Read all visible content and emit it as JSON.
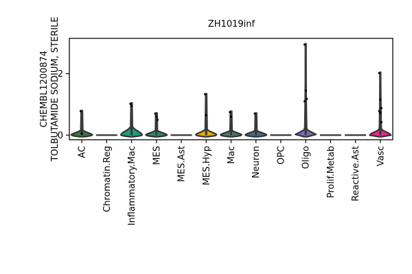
{
  "chart_data": {
    "type": "violin",
    "title": "ZH1019inf",
    "ylabel_lines": [
      "CHEMBL1200874",
      "TOLBUTAMIDE SODIUM, STERILE"
    ],
    "xlabel": "",
    "ylim": [
      -0.15,
      3.15
    ],
    "yticks": [
      0,
      2
    ],
    "grid": false,
    "legend": "none",
    "categories": [
      {
        "label": "AC",
        "max": 0.8,
        "color": "#3a7a4a",
        "spread": 0.15,
        "points": [
          0.78,
          0.05
        ]
      },
      {
        "label": "Chromatin.Reg",
        "max": 0.0,
        "color": "#2a6a5a",
        "spread": 0.0,
        "points": []
      },
      {
        "label": "Inflammatory.Mac",
        "max": 1.05,
        "color": "#1b9e77",
        "spread": 0.55,
        "points": [
          1.02,
          0.95
        ]
      },
      {
        "label": "MES",
        "max": 0.72,
        "color": "#2e8a60",
        "spread": 0.12,
        "points": [
          0.7,
          0.6,
          0.5
        ]
      },
      {
        "label": "MES.Ast",
        "max": 0.0,
        "color": "#b59a20",
        "spread": 0.0,
        "points": []
      },
      {
        "label": "MES.Hyp",
        "max": 1.35,
        "color": "#e6ab02",
        "spread": 0.22,
        "points": [
          1.33,
          0.65
        ]
      },
      {
        "label": "Mac",
        "max": 0.78,
        "color": "#4a7a6a",
        "spread": 0.12,
        "points": [
          0.75,
          0.6
        ]
      },
      {
        "label": "Neuron",
        "max": 0.72,
        "color": "#4a6a8a",
        "spread": 0.12,
        "points": [
          0.7
        ]
      },
      {
        "label": "OPC",
        "max": 0.0,
        "color": "#555555",
        "spread": 0.0,
        "points": []
      },
      {
        "label": "Oligo",
        "max": 2.98,
        "color": "#7570b3",
        "spread": 0.25,
        "points": [
          2.95,
          1.45,
          1.18,
          1.1
        ]
      },
      {
        "label": "Prolif.Metab",
        "max": 0.0,
        "color": "#555555",
        "spread": 0.0,
        "points": []
      },
      {
        "label": "Reactive.Ast",
        "max": 0.0,
        "color": "#555555",
        "spread": 0.0,
        "points": []
      },
      {
        "label": "Vasc",
        "max": 2.05,
        "color": "#e7298a",
        "spread": 0.28,
        "points": [
          2.02,
          1.15,
          0.88,
          0.78,
          0.72,
          0.42
        ]
      }
    ],
    "colors": {
      "axis": "#000000",
      "violin_edge": "#333333",
      "body": "#3a3a3a"
    }
  }
}
